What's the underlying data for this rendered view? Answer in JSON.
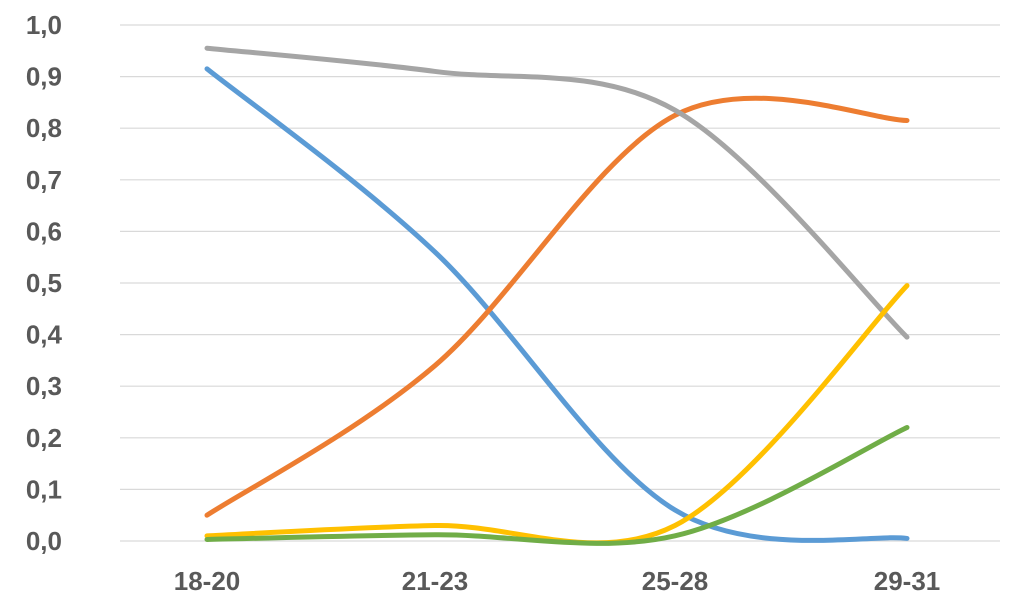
{
  "chart_data": {
    "type": "line",
    "title": "",
    "xlabel": "",
    "ylabel": "",
    "categories": [
      "18-20",
      "21-23",
      "25-28",
      "29-31"
    ],
    "ylim": [
      0,
      1.0
    ],
    "ytick_step": 0.1,
    "ytick_labels": [
      "0,0",
      "0,1",
      "0,2",
      "0,3",
      "0,4",
      "0,5",
      "0,6",
      "0,7",
      "0,8",
      "0,9",
      "1,0"
    ],
    "grid": true,
    "legend": "none",
    "series": [
      {
        "color": "#5b9bd5",
        "values": [
          0.915,
          0.56,
          0.06,
          0.005
        ]
      },
      {
        "color": "#ed7d31",
        "values": [
          0.05,
          0.34,
          0.825,
          0.815
        ]
      },
      {
        "color": "#a5a5a5",
        "values": [
          0.955,
          0.91,
          0.835,
          0.395
        ]
      },
      {
        "color": "#ffc000",
        "values": [
          0.01,
          0.03,
          0.03,
          0.495
        ]
      },
      {
        "color": "#70ad47",
        "values": [
          0.003,
          0.012,
          0.01,
          0.22
        ]
      }
    ],
    "colors": {
      "grid": "#d9d9d9",
      "tick_text": "#595959"
    }
  }
}
